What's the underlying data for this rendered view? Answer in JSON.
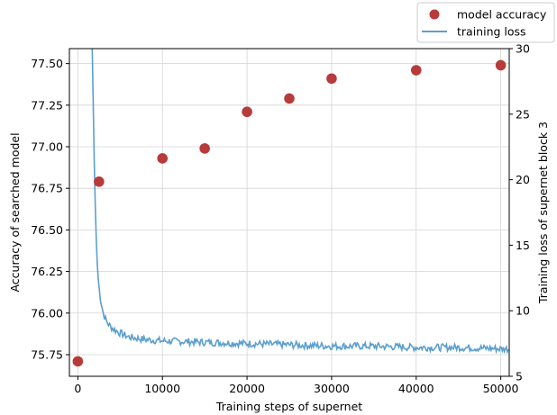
{
  "chart_data": {
    "type": "scatter+line",
    "xlabel": "Training steps of supernet",
    "ylabel_left": "Accuracy of searched model",
    "ylabel_right": "Training loss of supernet block 3",
    "xlim": [
      -1000,
      51000
    ],
    "ylim_left": [
      75.62,
      77.59
    ],
    "ylim_right": [
      5,
      30
    ],
    "x_ticks": [
      0,
      10000,
      20000,
      30000,
      40000,
      50000
    ],
    "y_ticks_left": [
      75.75,
      76.0,
      76.25,
      76.5,
      76.75,
      77.0,
      77.25,
      77.5
    ],
    "y_ticks_left_labels": [
      "75.75",
      "76.00",
      "76.25",
      "76.50",
      "76.75",
      "77.00",
      "77.25",
      "77.50"
    ],
    "y_ticks_right": [
      5,
      10,
      15,
      20,
      25,
      30
    ],
    "grid": true,
    "legend_position": "top-right (outside)",
    "series": [
      {
        "name": "model accuracy",
        "kind": "scatter",
        "axis": "left",
        "color": "#b83b3b",
        "x": [
          0,
          2500,
          10000,
          15000,
          20000,
          25000,
          30000,
          40000,
          50000
        ],
        "y": [
          75.71,
          76.79,
          76.93,
          76.99,
          77.21,
          77.29,
          77.41,
          77.46,
          77.49
        ]
      },
      {
        "name": "training loss",
        "kind": "line",
        "axis": "right",
        "color": "#5b9fce",
        "x": [
          1700,
          1800,
          1900,
          2000,
          2100,
          2200,
          2300,
          2400,
          2600,
          2800,
          3000,
          3300,
          3700,
          4200,
          5000,
          6000,
          8000,
          10000,
          15000,
          20000,
          25000,
          30000,
          35000,
          40000,
          45000,
          50000,
          51000
        ],
        "y": [
          30.0,
          26.5,
          22.5,
          19.5,
          17.0,
          15.0,
          13.5,
          12.5,
          11.2,
          10.5,
          9.8,
          9.3,
          8.9,
          8.6,
          8.3,
          8.0,
          7.8,
          7.7,
          7.6,
          7.5,
          7.4,
          7.3,
          7.3,
          7.2,
          7.2,
          7.1,
          7.1
        ]
      }
    ]
  }
}
